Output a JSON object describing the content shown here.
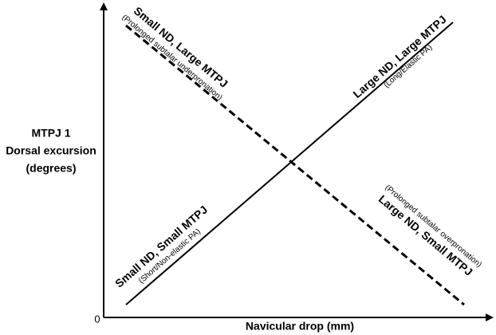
{
  "y_axis": {
    "label_lines": [
      "MTPJ 1",
      "Dorsal excursion",
      "(degrees)"
    ]
  },
  "x_axis": {
    "label": "Navicular drop (mm)"
  },
  "origin": "0",
  "annotations": [
    {
      "title": "Small ND, Large MTPJ",
      "note": "(Prolonged subtalar underpronation)"
    },
    {
      "title": "Large ND, Large MTPJ",
      "note": "(Long/Elastic PA)"
    },
    {
      "title": "Small ND, Small MTPJ",
      "note": "(Short/Non-elastic PA)"
    },
    {
      "title": "Large ND, Small MTPJ",
      "note": "(Prolonged subtalar overpronation)"
    }
  ]
}
